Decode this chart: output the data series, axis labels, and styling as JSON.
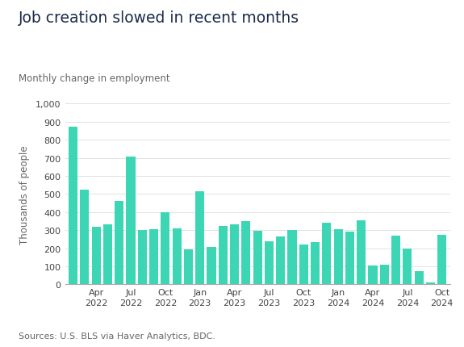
{
  "title": "Job creation slowed in recent months",
  "subtitle": "Monthly change in employment",
  "ylabel": "Thousands of people",
  "source": "Sources: U.S. BLS via Haver Analytics, BDC.",
  "bar_color": "#3dd6b5",
  "background_color": "#ffffff",
  "ylim": [
    0,
    1000
  ],
  "yticks": [
    0,
    100,
    200,
    300,
    400,
    500,
    600,
    700,
    800,
    900,
    1000
  ],
  "ytick_labels": [
    "0",
    "100",
    "200",
    "300",
    "400",
    "500",
    "600",
    "700",
    "800",
    "900",
    "1,000"
  ],
  "values": [
    870,
    525,
    320,
    330,
    460,
    705,
    300,
    305,
    400,
    310,
    195,
    515,
    205,
    325,
    330,
    350,
    295,
    240,
    265,
    300,
    220,
    235,
    340,
    305,
    290,
    355,
    105,
    110,
    270,
    200,
    75,
    10,
    275
  ],
  "tick_labels_show": [
    "Apr\n2022",
    "Jul\n2022",
    "Oct\n2022",
    "Jan\n2023",
    "Apr\n2023",
    "Jul\n2023",
    "Oct\n2023",
    "Jan\n2024",
    "Apr\n2024",
    "Jul\n2024",
    "Oct\n2024"
  ],
  "tick_positions_show": [
    2,
    5,
    8,
    11,
    14,
    17,
    20,
    23,
    26,
    29,
    32
  ]
}
